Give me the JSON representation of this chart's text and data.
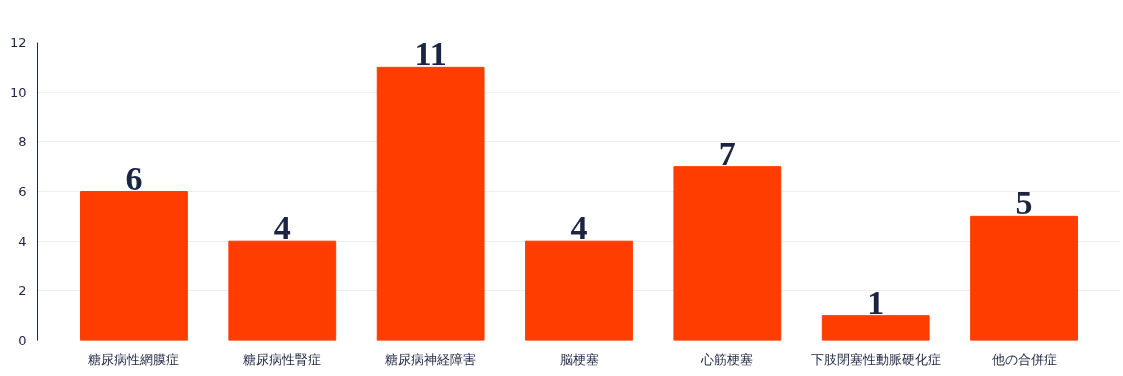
{
  "chart_data": {
    "type": "bar",
    "categories": [
      "糖尿病性網膜症",
      "糖尿病性腎症",
      "糖尿病神経障害",
      "脳梗塞",
      "心筋梗塞",
      "下肢閉塞性動脈硬化症",
      "他の合併症"
    ],
    "values": [
      6,
      4,
      11,
      4,
      7,
      1,
      5
    ],
    "color": "#ff3d00",
    "ylim": [
      0,
      12
    ],
    "yticks": [
      0,
      2,
      4,
      6,
      8,
      10,
      12
    ],
    "grid": "y",
    "data_labels": true
  }
}
